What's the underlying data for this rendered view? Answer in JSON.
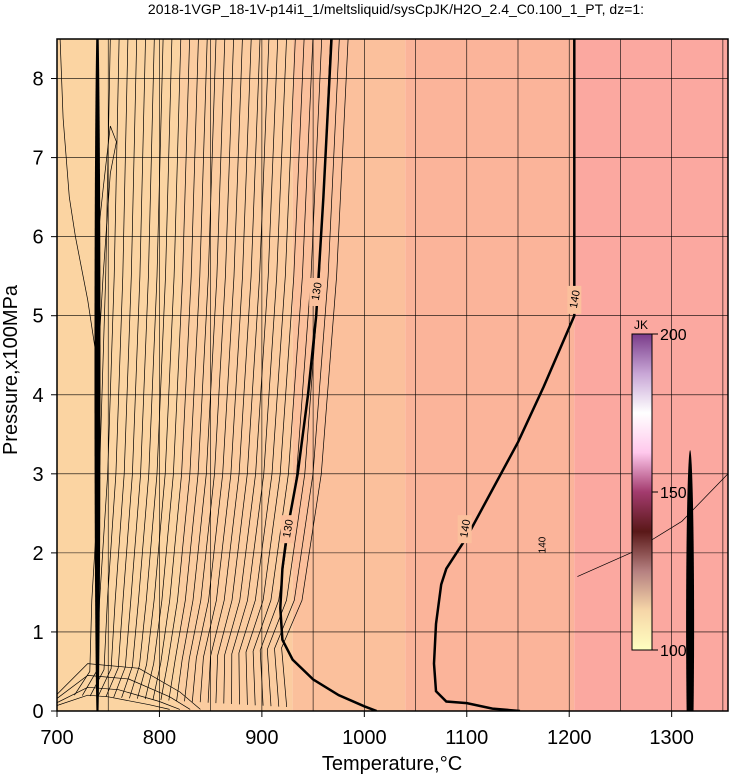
{
  "chart_data": {
    "type": "heatmap",
    "title": "2018-1VGP_18-1V-p14i1_1/meltsliquid/sysCpJK/H2O_2.4_C0.100_1_PT, dz=1:",
    "xlabel": "Temperature,°C",
    "ylabel": "Pressure,x100MPa",
    "xlim": [
      700,
      1355
    ],
    "ylim": [
      0,
      8.5
    ],
    "x_ticks": [
      "700",
      "800",
      "900",
      "1000",
      "1100",
      "1200",
      "1300"
    ],
    "y_ticks": [
      "0",
      "1",
      "2",
      "3",
      "4",
      "5",
      "6",
      "7",
      "8"
    ],
    "grid": true,
    "field_bands": [
      {
        "x_from": 700,
        "x_to": 820,
        "color": "#fbd4a2"
      },
      {
        "x_from": 820,
        "x_to": 930,
        "color": "#fbcca0"
      },
      {
        "x_from": 930,
        "x_to": 1040,
        "color": "#fbc09c"
      },
      {
        "x_from": 1040,
        "x_to": 1205,
        "color": "#fbb49a"
      },
      {
        "x_from": 1205,
        "x_to": 1355,
        "color": "#fba8a0"
      }
    ],
    "major_contours": [
      {
        "label": "130",
        "points": [
          [
            1012,
            0
          ],
          [
            1000,
            0.06
          ],
          [
            975,
            0.2
          ],
          [
            950,
            0.4
          ],
          [
            930,
            0.65
          ],
          [
            920,
            0.9
          ],
          [
            918,
            1.3
          ],
          [
            920,
            1.8
          ],
          [
            925,
            2.3
          ],
          [
            935,
            3.0
          ],
          [
            945,
            4.0
          ],
          [
            953,
            5.0
          ],
          [
            960,
            6.5
          ],
          [
            968,
            8.5
          ]
        ],
        "label_points": [
          [
            925,
            2.3
          ],
          [
            953,
            5.3
          ]
        ]
      },
      {
        "label": "140",
        "points": [
          [
            1152,
            0
          ],
          [
            1125,
            0.03
          ],
          [
            1100,
            0.1
          ],
          [
            1080,
            0.12
          ],
          [
            1070,
            0.25
          ],
          [
            1068,
            0.6
          ],
          [
            1070,
            1.1
          ],
          [
            1075,
            1.6
          ],
          [
            1080,
            1.8
          ],
          [
            1100,
            2.2
          ],
          [
            1125,
            2.8
          ],
          [
            1150,
            3.4
          ],
          [
            1175,
            4.1
          ],
          [
            1195,
            4.7
          ],
          [
            1205,
            5.0
          ],
          [
            1205,
            8.5
          ]
        ],
        "label_points": [
          [
            1098,
            2.3
          ],
          [
            1205,
            5.2
          ]
        ]
      }
    ],
    "minor_contour_style": "thin black lines",
    "annotations": [
      {
        "text": "140",
        "x": 1173,
        "y": 2.1
      }
    ],
    "colorbar": {
      "label": "JK",
      "min": 100,
      "max": 200,
      "ticks": [
        "100",
        "150",
        "200"
      ],
      "colors": [
        "#ffffc0",
        "#f6d6a8",
        "#b58080",
        "#5a1818",
        "#a33b6e",
        "#ffc8ec",
        "#ffffff",
        "#c8a6d6",
        "#7a3c8a"
      ]
    }
  }
}
